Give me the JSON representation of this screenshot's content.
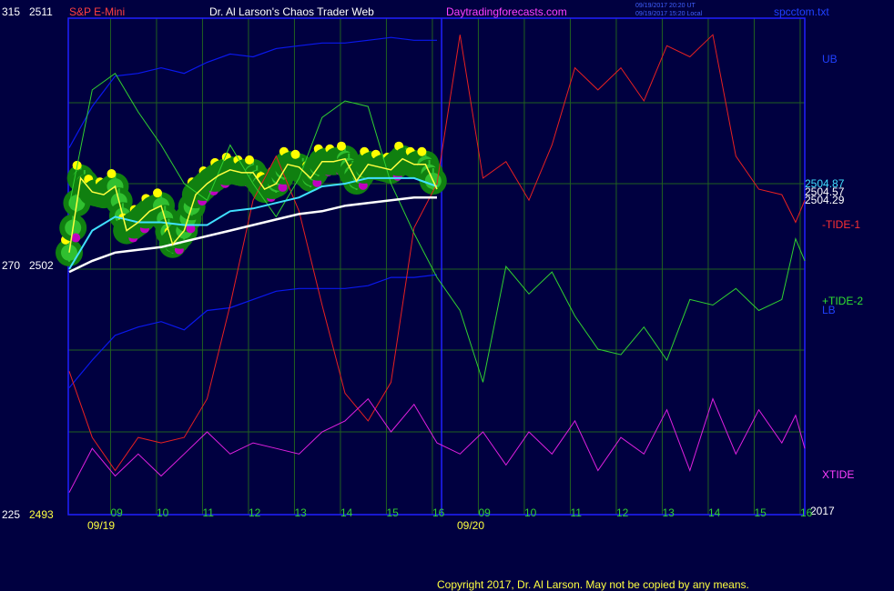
{
  "header": {
    "left_scale_top": "315",
    "price_top": "2511",
    "symbol": "S&P E-Mini",
    "brand": "Dr. Al Larson's Chaos Trader Web",
    "website": "Daytradingforecasts.com",
    "ts_utc": "09/19/2017 20:20 UT",
    "ts_local": "09/19/2017 15:20 Local",
    "file": "spcctom.txt"
  },
  "left_axis": {
    "mid_tide": "270",
    "mid_price": "2502",
    "bottom_tide": "225",
    "bottom_price": "2493"
  },
  "right_labels": {
    "ub": "UB",
    "tide1": "-TIDE-1",
    "tide2": "+TIDE-2",
    "lb": "LB",
    "xtide": "XTIDE",
    "year": "2017"
  },
  "price_readout": {
    "p1": "2504.87",
    "p2": "2504.57",
    "p3": "2504.29"
  },
  "x_axis": {
    "hours": [
      "09",
      "10",
      "11",
      "12",
      "13",
      "14",
      "15",
      "16",
      "09",
      "10",
      "11",
      "12",
      "13",
      "14",
      "15",
      "16"
    ],
    "dates": [
      "09/19",
      "09/20"
    ]
  },
  "footer": {
    "copyright": "Copyright 2017, Dr. Al Larson. May not be copied by any means."
  },
  "colors": {
    "background": "#000040",
    "frame": "#2020ff",
    "grid": "#206020",
    "band": "#0a18ee",
    "tide1": "#e82020",
    "tide2": "#30d030",
    "xtide": "#e020e0",
    "ema_fast": "#40e0ff",
    "ema_slow": "#ffffff",
    "price": "#ffff40",
    "bubble_outer": "#108010",
    "bubble_mid": "#30c030",
    "dot_up": "#ffff00",
    "dot_down": "#c000c0"
  },
  "chart_data": {
    "type": "line",
    "title": "S&P E-Mini",
    "x_unit": "hour offset from 09/19 08:00",
    "x_range": [
      0,
      16
    ],
    "y_price_range": [
      2493,
      2511
    ],
    "y_tide_range": [
      225,
      315
    ],
    "series": [
      {
        "name": "UB",
        "x": [
          0,
          0.5,
          1,
          1.5,
          2,
          2.5,
          3,
          3.5,
          4,
          4.5,
          5,
          5.5,
          6,
          6.5,
          7,
          7.5,
          8
        ],
        "y": [
          2506.3,
          2507.8,
          2508.9,
          2509.0,
          2509.2,
          2509.0,
          2509.4,
          2509.7,
          2509.6,
          2509.9,
          2510.0,
          2510.1,
          2510.1,
          2510.2,
          2510.3,
          2510.2,
          2510.2
        ]
      },
      {
        "name": "LB",
        "x": [
          0,
          0.5,
          1,
          1.5,
          2,
          2.5,
          3,
          3.5,
          4,
          4.5,
          5,
          5.5,
          6,
          6.5,
          7,
          7.5,
          8
        ],
        "y": [
          2497.6,
          2498.6,
          2499.5,
          2499.8,
          2500.0,
          2499.7,
          2500.4,
          2500.5,
          2500.8,
          2501.1,
          2501.2,
          2501.2,
          2501.2,
          2501.3,
          2501.6,
          2501.6,
          2501.7
        ]
      },
      {
        "name": "-TIDE-1",
        "x": [
          0,
          0.5,
          1,
          1.5,
          2,
          2.5,
          3,
          3.5,
          4,
          4.5,
          5,
          5.5,
          6,
          6.5,
          7,
          7.5,
          8,
          8.5,
          9,
          9.5,
          10,
          10.5,
          11,
          11.5,
          12,
          12.5,
          13,
          13.5,
          14,
          14.5,
          15,
          15.5,
          15.8,
          16
        ],
        "y": [
          251,
          239,
          233,
          239,
          238,
          239,
          246,
          263,
          282,
          290,
          280,
          263,
          247,
          242,
          249,
          277,
          285,
          312,
          286,
          289,
          282,
          292,
          306,
          302,
          306,
          300,
          310,
          308,
          312,
          290,
          284,
          283,
          278,
          282
        ]
      },
      {
        "name": "+TIDE-2",
        "x": [
          0,
          0.5,
          1,
          1.5,
          2,
          2.5,
          3,
          3.5,
          4,
          4.5,
          5,
          5.5,
          6,
          6.5,
          7,
          7.5,
          8,
          8.5,
          9,
          9.5,
          10,
          10.5,
          11,
          11.5,
          12,
          12.5,
          13,
          13.5,
          14,
          14.5,
          15,
          15.5,
          15.8,
          16
        ],
        "y": [
          281,
          302,
          305,
          298,
          292,
          285,
          282,
          292,
          285,
          279,
          286,
          297,
          300,
          299,
          285,
          276,
          268,
          262,
          249,
          270,
          265,
          269,
          261,
          255,
          254,
          259,
          253,
          264,
          263,
          266,
          262,
          264,
          275,
          271
        ]
      },
      {
        "name": "XTIDE",
        "x": [
          0,
          0.5,
          1,
          1.5,
          2,
          2.5,
          3,
          3.5,
          4,
          4.5,
          5,
          5.5,
          6,
          6.5,
          7,
          7.5,
          8,
          8.5,
          9,
          9.5,
          10,
          10.5,
          11,
          11.5,
          12,
          12.5,
          13,
          13.5,
          14,
          14.5,
          15,
          15.5,
          15.8,
          16
        ],
        "y": [
          229,
          237,
          232,
          236,
          232,
          236,
          240,
          236,
          238,
          237,
          236,
          240,
          242,
          246,
          240,
          245,
          238,
          236,
          240,
          234,
          240,
          236,
          242,
          233,
          239,
          236,
          244,
          233,
          246,
          236,
          244,
          238,
          243,
          237
        ]
      },
      {
        "name": "fast EMA",
        "x": [
          0,
          0.5,
          1,
          1.5,
          2,
          2.5,
          3,
          3.5,
          4,
          4.5,
          5,
          5.5,
          6,
          6.5,
          7,
          7.5,
          8
        ],
        "y": [
          2501.9,
          2503.3,
          2503.8,
          2503.6,
          2503.6,
          2503.5,
          2503.5,
          2504.0,
          2504.1,
          2504.3,
          2504.5,
          2504.9,
          2505.0,
          2505.2,
          2505.2,
          2505.2,
          2504.9
        ]
      },
      {
        "name": "slow EMA",
        "x": [
          0,
          0.5,
          1,
          1.5,
          2,
          2.5,
          3,
          3.5,
          4,
          4.5,
          5,
          5.5,
          6,
          6.5,
          7,
          7.5,
          8
        ],
        "y": [
          2501.8,
          2502.2,
          2502.5,
          2502.6,
          2502.7,
          2502.9,
          2503.1,
          2503.3,
          2503.5,
          2503.7,
          2503.9,
          2504.0,
          2504.2,
          2504.3,
          2504.4,
          2504.5,
          2504.5
        ]
      },
      {
        "name": "price",
        "x": [
          0,
          0.25,
          0.5,
          0.75,
          1,
          1.25,
          1.5,
          1.75,
          2,
          2.25,
          2.5,
          2.75,
          3,
          3.25,
          3.5,
          3.75,
          4,
          4.25,
          4.5,
          4.75,
          5,
          5.25,
          5.5,
          5.75,
          6,
          6.25,
          6.5,
          6.75,
          7,
          7.25,
          7.5,
          7.75,
          8
        ],
        "y": [
          2502.5,
          2505.2,
          2504.7,
          2504.6,
          2504.9,
          2503.3,
          2503.6,
          2504.0,
          2504.2,
          2502.8,
          2503.3,
          2504.6,
          2505.0,
          2505.3,
          2505.5,
          2505.4,
          2505.4,
          2504.8,
          2505.0,
          2505.7,
          2505.6,
          2505.2,
          2505.8,
          2505.8,
          2505.9,
          2505.1,
          2505.7,
          2505.6,
          2505.5,
          2505.9,
          2505.7,
          2505.7,
          2504.8
        ]
      }
    ]
  }
}
